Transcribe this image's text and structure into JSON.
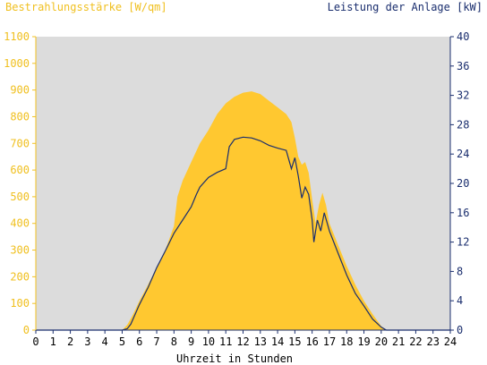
{
  "chart_data": {
    "type": "area",
    "title_left": "Bestrahlungsstärke [W/qm]",
    "title_right": "Leistung der Anlage [kW]",
    "xlabel": "Uhrzeit in Stunden",
    "x_ticks": [
      "0",
      "1",
      "2",
      "3",
      "4",
      "5",
      "6",
      "7",
      "8",
      "9",
      "10",
      "11",
      "12",
      "13",
      "14",
      "15",
      "16",
      "17",
      "18",
      "19",
      "20",
      "21",
      "22",
      "23",
      "24"
    ],
    "xlim": [
      0,
      24
    ],
    "y_left": {
      "label": "Bestrahlungsstärke [W/qm]",
      "ticks": [
        "0",
        "100",
        "200",
        "300",
        "400",
        "500",
        "600",
        "700",
        "800",
        "900",
        "1000",
        "1100"
      ],
      "ylim": [
        0,
        1100
      ],
      "color": "#f0c020"
    },
    "y_right": {
      "label": "Leistung der Anlage [kW]",
      "ticks": [
        "0",
        "4",
        "8",
        "12",
        "16",
        "20",
        "24",
        "28",
        "32",
        "36",
        "40"
      ],
      "ylim": [
        0,
        40
      ],
      "color": "#1a2e6e"
    },
    "background_color": "#dcdcdc",
    "grid": false,
    "series": [
      {
        "axis": "left",
        "kind": "area",
        "color": "#ffc830",
        "points": [
          [
            0,
            0
          ],
          [
            5.0,
            0
          ],
          [
            5.3,
            20
          ],
          [
            5.6,
            55
          ],
          [
            6.0,
            110
          ],
          [
            6.5,
            170
          ],
          [
            7.0,
            235
          ],
          [
            7.5,
            300
          ],
          [
            8.0,
            390
          ],
          [
            8.2,
            500
          ],
          [
            8.5,
            560
          ],
          [
            9.0,
            630
          ],
          [
            9.5,
            700
          ],
          [
            10.0,
            750
          ],
          [
            10.5,
            810
          ],
          [
            11.0,
            850
          ],
          [
            11.5,
            875
          ],
          [
            12.0,
            890
          ],
          [
            12.5,
            895
          ],
          [
            13.0,
            885
          ],
          [
            13.5,
            860
          ],
          [
            14.0,
            835
          ],
          [
            14.5,
            810
          ],
          [
            14.8,
            780
          ],
          [
            15.0,
            720
          ],
          [
            15.2,
            650
          ],
          [
            15.4,
            620
          ],
          [
            15.6,
            630
          ],
          [
            15.8,
            590
          ],
          [
            16.0,
            490
          ],
          [
            16.2,
            400
          ],
          [
            16.4,
            470
          ],
          [
            16.6,
            515
          ],
          [
            16.8,
            470
          ],
          [
            17.0,
            400
          ],
          [
            17.5,
            320
          ],
          [
            18.0,
            240
          ],
          [
            18.5,
            170
          ],
          [
            19.0,
            110
          ],
          [
            19.5,
            60
          ],
          [
            20.0,
            15
          ],
          [
            20.3,
            0
          ],
          [
            24,
            0
          ]
        ]
      },
      {
        "axis": "right",
        "kind": "line",
        "color": "#1a2e6e",
        "points": [
          [
            0,
            0
          ],
          [
            5.0,
            0
          ],
          [
            5.3,
            0.2
          ],
          [
            5.5,
            0.8
          ],
          [
            6.0,
            3.5
          ],
          [
            6.5,
            5.8
          ],
          [
            7.0,
            8.5
          ],
          [
            7.5,
            10.8
          ],
          [
            8.0,
            13.2
          ],
          [
            8.5,
            15.0
          ],
          [
            9.0,
            16.8
          ],
          [
            9.3,
            18.5
          ],
          [
            9.5,
            19.5
          ],
          [
            10.0,
            20.8
          ],
          [
            10.5,
            21.5
          ],
          [
            11.0,
            22.0
          ],
          [
            11.2,
            25.0
          ],
          [
            11.5,
            26.0
          ],
          [
            12.0,
            26.3
          ],
          [
            12.5,
            26.2
          ],
          [
            13.0,
            25.8
          ],
          [
            13.5,
            25.2
          ],
          [
            14.0,
            24.8
          ],
          [
            14.5,
            24.5
          ],
          [
            14.8,
            22.0
          ],
          [
            15.0,
            23.5
          ],
          [
            15.2,
            21.0
          ],
          [
            15.4,
            18.0
          ],
          [
            15.6,
            19.5
          ],
          [
            15.8,
            18.5
          ],
          [
            16.0,
            15.0
          ],
          [
            16.1,
            12.0
          ],
          [
            16.3,
            15.0
          ],
          [
            16.5,
            13.5
          ],
          [
            16.7,
            16.0
          ],
          [
            17.0,
            13.5
          ],
          [
            17.5,
            10.5
          ],
          [
            18.0,
            7.5
          ],
          [
            18.5,
            5.0
          ],
          [
            19.0,
            3.3
          ],
          [
            19.5,
            1.5
          ],
          [
            20.0,
            0.4
          ],
          [
            20.3,
            0
          ],
          [
            24,
            0
          ]
        ]
      }
    ]
  }
}
